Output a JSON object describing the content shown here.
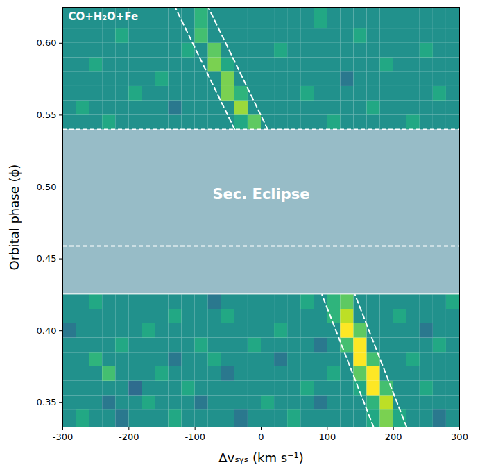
{
  "chart_data": {
    "type": "heatmap",
    "annotation": "CO+H₂O+Fe",
    "xlabel": "Δvₛᵧₛ (km s⁻¹)",
    "ylabel": "Orbital phase (ϕ)",
    "xlim": [
      -300,
      300
    ],
    "ylim": [
      0.333,
      0.625
    ],
    "xticks": [
      -300,
      -200,
      -100,
      0,
      100,
      200,
      300
    ],
    "yticks": [
      {
        "value": 0.35,
        "label": "0.35"
      },
      {
        "value": 0.4,
        "label": "0.40"
      },
      {
        "value": 0.45,
        "label": "0.45"
      },
      {
        "value": 0.5,
        "label": "0.50"
      },
      {
        "value": 0.55,
        "label": "0.55"
      },
      {
        "value": 0.6,
        "label": "0.60"
      }
    ],
    "color": "viridis",
    "cell_range": [
      -1,
      1
    ],
    "velocity_bins": [
      -300,
      -280,
      -260,
      -240,
      -220,
      -200,
      -180,
      -160,
      -140,
      -120,
      -100,
      -80,
      -60,
      -40,
      -20,
      0,
      20,
      40,
      60,
      80,
      100,
      120,
      140,
      160,
      180,
      200,
      220,
      240,
      260,
      280,
      300
    ],
    "cells": [
      {
        "phase": [
          0.333,
          0.345
        ],
        "values": [
          0,
          0.2,
          0,
          0,
          -0.2,
          0,
          0,
          0,
          0.2,
          0,
          0,
          0,
          0,
          -0.2,
          0,
          0,
          0,
          0.2,
          0,
          0,
          0,
          0,
          0,
          0.2,
          0.6,
          0.2,
          0,
          0,
          -0.2,
          0
        ]
      },
      {
        "phase": [
          0.345,
          0.355
        ],
        "values": [
          0,
          0,
          0,
          -0.2,
          0,
          0,
          0.2,
          0,
          0,
          0,
          -0.2,
          0,
          0,
          0,
          0,
          0.2,
          0,
          0,
          0,
          -0.2,
          0,
          0,
          0,
          0.3,
          0.8,
          0,
          0,
          0,
          0,
          0
        ]
      },
      {
        "phase": [
          0.355,
          0.365
        ],
        "values": [
          0,
          0,
          0,
          0,
          0,
          -0.3,
          0,
          0,
          0,
          0.2,
          0,
          0,
          0,
          0,
          0,
          0,
          0,
          0,
          0.2,
          0,
          0,
          0,
          0.2,
          1,
          0.4,
          0,
          0,
          0.2,
          0,
          0
        ]
      },
      {
        "phase": [
          0.365,
          0.375
        ],
        "values": [
          0,
          0,
          0,
          0.4,
          0,
          0,
          0,
          0.2,
          0,
          0,
          0,
          0,
          -0.2,
          0,
          0,
          0,
          0,
          0,
          0,
          0,
          0.2,
          0,
          0.5,
          1,
          0,
          0,
          0,
          0,
          0,
          0
        ]
      },
      {
        "phase": [
          0.375,
          0.385
        ],
        "values": [
          0,
          0,
          0.3,
          0,
          0,
          0,
          0,
          0,
          -0.2,
          0,
          0,
          0.2,
          0,
          0,
          0,
          0,
          -0.2,
          0,
          0,
          0,
          0,
          0,
          1,
          0.4,
          0,
          0,
          0.2,
          0,
          0,
          0
        ]
      },
      {
        "phase": [
          0.385,
          0.395
        ],
        "values": [
          0,
          0,
          0,
          0,
          0.2,
          0,
          0,
          0,
          0,
          0,
          0.2,
          0,
          0,
          0,
          0.2,
          0,
          0,
          0,
          0,
          -0.2,
          0,
          0.4,
          1,
          0,
          0,
          0,
          0,
          0,
          0.2,
          0
        ]
      },
      {
        "phase": [
          0.395,
          0.405
        ],
        "values": [
          -0.2,
          0,
          0,
          0,
          0,
          0,
          0.2,
          0,
          0,
          0,
          0,
          0,
          0,
          0,
          0,
          0,
          0.2,
          0,
          0,
          0,
          0,
          1,
          0.5,
          0,
          0,
          0,
          0,
          -0.2,
          0,
          0
        ]
      },
      {
        "phase": [
          0.405,
          0.415
        ],
        "values": [
          0,
          0,
          0,
          0,
          0,
          0,
          0,
          0,
          0.2,
          0,
          0,
          0,
          0.2,
          0,
          0,
          0,
          0,
          0,
          0,
          0,
          0.3,
          0.8,
          0,
          0,
          0,
          0.2,
          0,
          0,
          0,
          0
        ]
      },
      {
        "phase": [
          0.415,
          0.425
        ],
        "values": [
          0,
          0,
          0.2,
          0,
          0,
          0,
          0,
          0,
          0,
          0,
          0,
          -0.2,
          0,
          0,
          0,
          0,
          0,
          0,
          0.2,
          0,
          0.3,
          0.5,
          0,
          0,
          0,
          0,
          0,
          0,
          0,
          0.2
        ]
      },
      {
        "phase": [
          0.54,
          0.55
        ],
        "values": [
          0,
          0,
          0,
          0.2,
          0,
          0,
          0,
          0,
          0,
          0,
          0,
          0,
          0,
          0.2,
          0.5,
          0,
          0,
          0,
          0,
          0,
          0.2,
          0,
          0,
          0,
          0,
          0,
          0.2,
          0,
          0,
          0
        ]
      },
      {
        "phase": [
          0.55,
          0.56
        ],
        "values": [
          0,
          0.2,
          0,
          0,
          0,
          0,
          0,
          0,
          -0.2,
          0,
          0,
          0,
          0,
          0.7,
          0,
          0,
          0,
          0,
          0,
          0,
          0,
          0,
          0,
          0.2,
          0,
          0,
          0,
          0,
          0,
          0
        ]
      },
      {
        "phase": [
          0.56,
          0.57
        ],
        "values": [
          0,
          0,
          0,
          0,
          0,
          0.2,
          0,
          0,
          0,
          0,
          0,
          0,
          0.6,
          0.3,
          0,
          0,
          0,
          0,
          0.2,
          0,
          0,
          0,
          0,
          0,
          0,
          0,
          0,
          0,
          0.2,
          0
        ]
      },
      {
        "phase": [
          0.57,
          0.58
        ],
        "values": [
          0,
          0,
          0,
          0,
          0,
          0,
          0,
          0.2,
          0,
          0,
          0,
          0,
          0.6,
          0,
          0,
          0,
          0,
          0,
          0,
          0,
          0,
          -0.2,
          0,
          0,
          0,
          0,
          0,
          0,
          0,
          0
        ]
      },
      {
        "phase": [
          0.58,
          0.59
        ],
        "values": [
          0,
          0,
          0.2,
          0,
          0,
          0,
          0,
          0,
          0,
          0,
          0,
          0.6,
          0.2,
          0,
          0,
          0,
          0,
          0,
          0,
          0,
          0,
          0,
          0,
          0,
          0.2,
          0,
          0,
          0,
          0,
          0
        ]
      },
      {
        "phase": [
          0.59,
          0.6
        ],
        "values": [
          0,
          0,
          0,
          0,
          0,
          0,
          0,
          0,
          0,
          0.2,
          0,
          0.5,
          0,
          0,
          0,
          0,
          0.2,
          0,
          0,
          0,
          0,
          0,
          0,
          0,
          0,
          0,
          0,
          0.2,
          0,
          0
        ]
      },
      {
        "phase": [
          0.6,
          0.61
        ],
        "values": [
          0,
          0,
          0,
          0,
          0.2,
          0,
          0,
          0,
          0,
          0,
          0.4,
          0,
          0,
          0,
          0,
          0,
          0,
          0,
          0,
          0,
          0,
          0,
          0.2,
          0,
          0,
          0,
          0,
          0,
          0,
          0
        ]
      },
      {
        "phase": [
          0.61,
          0.625
        ],
        "values": [
          0,
          0,
          0,
          0,
          0,
          0,
          0,
          0,
          0,
          0,
          0.3,
          0,
          0,
          0,
          0,
          0,
          0,
          0,
          0,
          0.2,
          0,
          0,
          0,
          0,
          0,
          0,
          0,
          0,
          0,
          0
        ]
      }
    ],
    "eclipse": {
      "label": "Sec. Eclipse",
      "phase": [
        0.426,
        0.54
      ],
      "color": "#97bcc7",
      "label_position": [
        0,
        0.495
      ]
    },
    "phase_lines": [
      0.54,
      0.459
    ],
    "trail_lines": [
      {
        "v": [
          170,
          92
        ],
        "phase": [
          0.333,
          0.425
        ]
      },
      {
        "v": [
          220,
          142
        ],
        "phase": [
          0.333,
          0.425
        ]
      },
      {
        "v": [
          -40,
          -130
        ],
        "phase": [
          0.54,
          0.625
        ]
      },
      {
        "v": [
          10,
          -80
        ],
        "phase": [
          0.54,
          0.625
        ]
      }
    ],
    "grid": false
  }
}
